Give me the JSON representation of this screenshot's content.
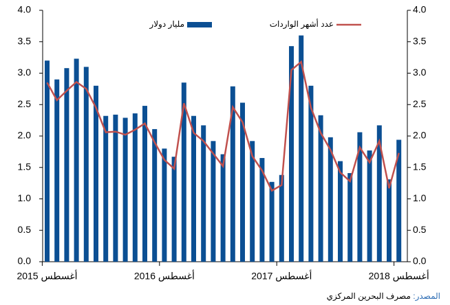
{
  "chart_data": {
    "type": "bar_line",
    "categories": [
      "أغسطس 2015",
      null,
      null,
      null,
      null,
      null,
      null,
      null,
      null,
      null,
      null,
      null,
      "أغسطس 2016",
      null,
      null,
      null,
      null,
      null,
      null,
      null,
      null,
      null,
      null,
      null,
      "أغسطس 2017",
      null,
      null,
      null,
      null,
      null,
      null,
      null,
      null,
      null,
      null,
      null,
      "أغسطس 2018"
    ],
    "series": [
      {
        "name": "مليار دولار",
        "color": "#0b4f93",
        "type": "bar",
        "values": [
          3.2,
          2.9,
          3.08,
          3.23,
          3.1,
          2.8,
          2.32,
          2.34,
          2.29,
          2.36,
          2.48,
          2.11,
          1.8,
          1.67,
          2.85,
          2.32,
          2.17,
          1.92,
          1.71,
          2.79,
          2.53,
          1.92,
          1.65,
          1.27,
          1.38,
          3.43,
          3.6,
          2.8,
          2.33,
          1.98,
          1.6,
          1.41,
          2.06,
          1.77,
          2.17,
          1.31,
          1.94
        ]
      },
      {
        "name": "عدد أشهر الواردات",
        "color": "#c0504d",
        "type": "line",
        "axis": "y2",
        "values": [
          2.85,
          2.57,
          2.72,
          2.86,
          2.75,
          2.45,
          2.06,
          2.07,
          2.02,
          2.1,
          2.2,
          1.9,
          1.62,
          1.48,
          2.52,
          2.05,
          1.92,
          1.72,
          1.52,
          2.46,
          2.22,
          1.68,
          1.45,
          1.13,
          1.22,
          3.05,
          3.18,
          2.45,
          2.05,
          1.78,
          1.42,
          1.28,
          1.82,
          1.58,
          1.92,
          1.17,
          1.73
        ]
      }
    ],
    "ylim": [
      0,
      4
    ],
    "yticks": [
      {
        "value": 0,
        "label": "0.0"
      },
      {
        "value": 0.5,
        "label": "0.5"
      },
      {
        "value": 1,
        "label": "1.0"
      },
      {
        "value": 1.5,
        "label": "1.5"
      },
      {
        "value": 2,
        "label": "2.0"
      },
      {
        "value": 2.5,
        "label": "2.5"
      },
      {
        "value": 3,
        "label": "3.0"
      },
      {
        "value": 3.5,
        "label": "3.5"
      },
      {
        "value": 4,
        "label": "4.0"
      }
    ],
    "y2lim": [
      0,
      4
    ],
    "y2ticks": [
      {
        "value": 0,
        "label": "0.0"
      },
      {
        "value": 0.5,
        "label": "0.5"
      },
      {
        "value": 1,
        "label": "1.0"
      },
      {
        "value": 1.5,
        "label": "1.5"
      },
      {
        "value": 2,
        "label": "2.0"
      },
      {
        "value": 2.5,
        "label": "2.5"
      },
      {
        "value": 3,
        "label": "3.0"
      },
      {
        "value": 3.5,
        "label": "3.5"
      },
      {
        "value": 4,
        "label": "4.0"
      }
    ],
    "source_label": "المصدر:",
    "source_text": "مصرف البحرين المركزي"
  }
}
